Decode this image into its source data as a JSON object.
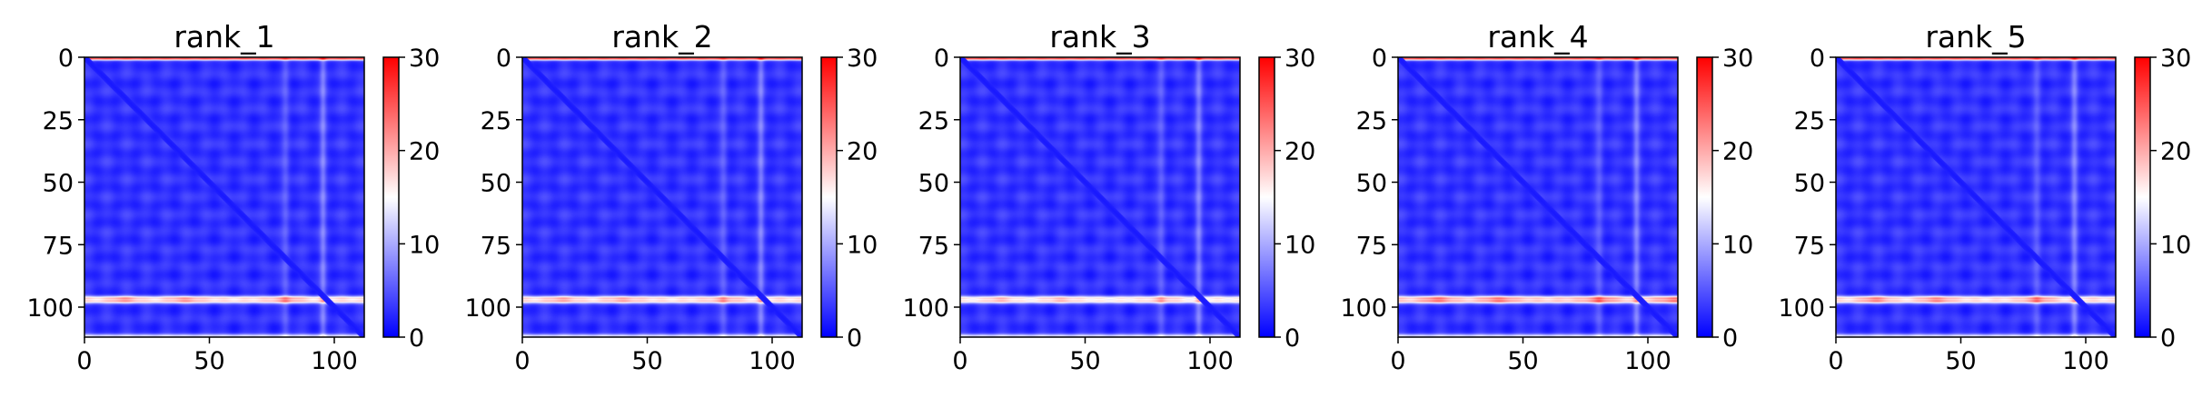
{
  "chart_data": [
    {
      "type": "heatmap",
      "title": "rank_1",
      "matrix_size": 112,
      "xlabel": "",
      "ylabel": "",
      "xticks": [
        0,
        50,
        100
      ],
      "yticks": [
        0,
        25,
        50,
        75,
        100
      ],
      "xlim": [
        0,
        112
      ],
      "ylim": [
        112,
        0
      ],
      "colorbar": {
        "min": 0,
        "max": 30,
        "ticks": [
          0,
          10,
          20,
          30
        ],
        "colormap": "bwr"
      },
      "features": {
        "background": 3,
        "diagonal": 1.5,
        "band_rows": [
          96,
          97
        ],
        "band_value": 14,
        "band_peaks": [
          15,
          40,
          80
        ],
        "band_peak_value": 18,
        "top_row": 0,
        "top_row_value": 22,
        "bottom_row": 111,
        "bottom_row_value": 9,
        "column_stripe": 95,
        "column_stripe_value": 8
      }
    },
    {
      "type": "heatmap",
      "title": "rank_2",
      "matrix_size": 112,
      "xlabel": "",
      "ylabel": "",
      "xticks": [
        0,
        50,
        100
      ],
      "yticks": [
        0,
        25,
        50,
        75,
        100
      ],
      "xlim": [
        0,
        112
      ],
      "ylim": [
        112,
        0
      ],
      "colorbar": {
        "min": 0,
        "max": 30,
        "ticks": [
          0,
          10,
          20,
          30
        ],
        "colormap": "bwr"
      },
      "features": {
        "background": 3,
        "diagonal": 1.5,
        "band_rows": [
          96,
          97
        ],
        "band_value": 14,
        "band_peaks": [
          15,
          40,
          80
        ],
        "band_peak_value": 17,
        "top_row": 0,
        "top_row_value": 22,
        "bottom_row": 111,
        "bottom_row_value": 9,
        "column_stripe": 95,
        "column_stripe_value": 8
      }
    },
    {
      "type": "heatmap",
      "title": "rank_3",
      "matrix_size": 112,
      "xlabel": "",
      "ylabel": "",
      "xticks": [
        0,
        50,
        100
      ],
      "yticks": [
        0,
        25,
        50,
        75,
        100
      ],
      "xlim": [
        0,
        112
      ],
      "ylim": [
        112,
        0
      ],
      "colorbar": {
        "min": 0,
        "max": 30,
        "ticks": [
          0,
          10,
          20,
          30
        ],
        "colormap": "bwr"
      },
      "features": {
        "background": 3,
        "diagonal": 1.5,
        "band_rows": [
          96,
          97
        ],
        "band_value": 13,
        "band_peaks": [
          15,
          40,
          80
        ],
        "band_peak_value": 16,
        "top_row": 0,
        "top_row_value": 22,
        "bottom_row": 111,
        "bottom_row_value": 9,
        "column_stripe": 95,
        "column_stripe_value": 8
      }
    },
    {
      "type": "heatmap",
      "title": "rank_4",
      "matrix_size": 112,
      "xlabel": "",
      "ylabel": "",
      "xticks": [
        0,
        50,
        100
      ],
      "yticks": [
        0,
        25,
        50,
        75,
        100
      ],
      "xlim": [
        0,
        112
      ],
      "ylim": [
        112,
        0
      ],
      "colorbar": {
        "min": 0,
        "max": 30,
        "ticks": [
          0,
          10,
          20,
          30
        ],
        "colormap": "bwr"
      },
      "features": {
        "background": 3,
        "diagonal": 1.5,
        "band_rows": [
          96,
          97
        ],
        "band_value": 15,
        "band_peaks": [
          15,
          40,
          80,
          110
        ],
        "band_peak_value": 20,
        "top_row": 0,
        "top_row_value": 22,
        "bottom_row": 111,
        "bottom_row_value": 9,
        "column_stripe": 95,
        "column_stripe_value": 8
      }
    },
    {
      "type": "heatmap",
      "title": "rank_5",
      "matrix_size": 112,
      "xlabel": "",
      "ylabel": "",
      "xticks": [
        0,
        50,
        100
      ],
      "yticks": [
        0,
        25,
        50,
        75,
        100
      ],
      "xlim": [
        0,
        112
      ],
      "ylim": [
        112,
        0
      ],
      "colorbar": {
        "min": 0,
        "max": 30,
        "ticks": [
          0,
          10,
          20,
          30
        ],
        "colormap": "bwr"
      },
      "features": {
        "background": 3,
        "diagonal": 1.5,
        "band_rows": [
          96,
          97
        ],
        "band_value": 14,
        "band_peaks": [
          15,
          40,
          80
        ],
        "band_peak_value": 19,
        "top_row": 0,
        "top_row_value": 22,
        "bottom_row": 111,
        "bottom_row_value": 9,
        "column_stripe": 95,
        "column_stripe_value": 8
      }
    }
  ]
}
